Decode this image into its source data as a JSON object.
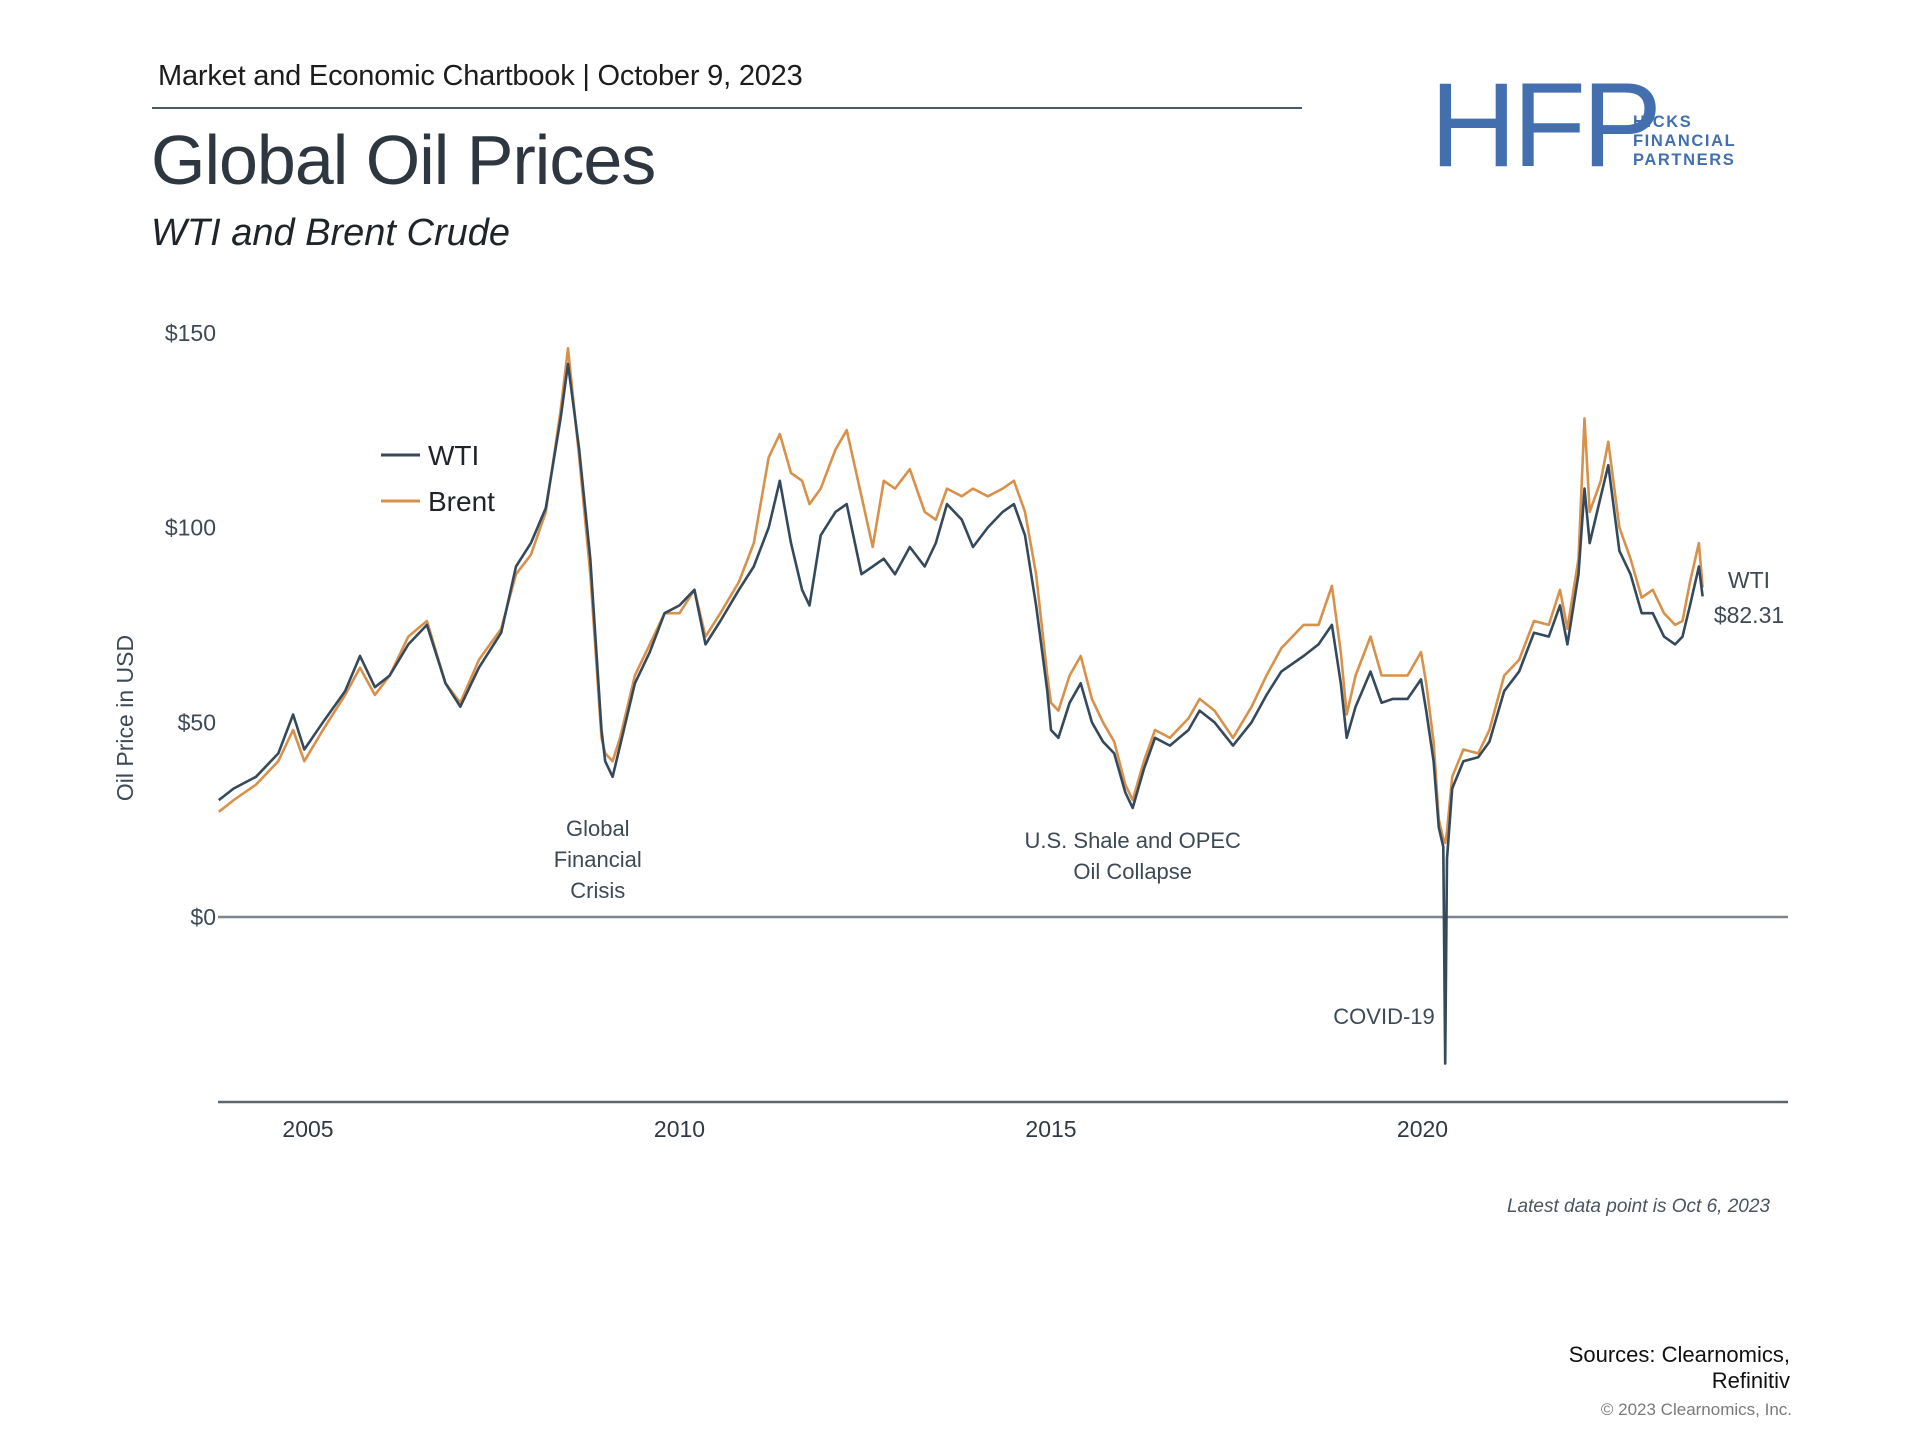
{
  "header": {
    "chartbook": "Market and Economic Chartbook | October 9, 2023",
    "title": "Global Oil Prices",
    "subtitle": "WTI and Brent Crude"
  },
  "logo": {
    "mark": "HFP",
    "line1": "HICKS",
    "line2": "FINANCIAL",
    "line3": "PARTNERS",
    "color": "#436faf"
  },
  "footer": {
    "footnote": "Latest data point is Oct 6, 2023",
    "sources_line1": "Sources: Clearnomics,",
    "sources_line2": "Refinitiv",
    "copyright": "© 2023 Clearnomics, Inc."
  },
  "chart_data": {
    "type": "line",
    "title": "Global Oil Prices",
    "subtitle": "WTI and Brent Crude",
    "xlabel": "",
    "ylabel": "Oil Price in USD",
    "xlim": [
      2003.8,
      2024.9
    ],
    "ylim": [
      -47,
      150
    ],
    "yticks": [
      0,
      50,
      100,
      150
    ],
    "ytick_labels": [
      "$0",
      "$50",
      "$100",
      "$150"
    ],
    "xticks": [
      2005,
      2010,
      2015,
      2020
    ],
    "xtick_labels": [
      "2005",
      "2010",
      "2015",
      "2020"
    ],
    "grid": false,
    "legend": {
      "placement": "top-left",
      "entries": [
        "WTI",
        "Brent"
      ]
    },
    "end_label": {
      "series": "WTI",
      "name": "WTI",
      "value_label": "$82.31",
      "value": 82.31
    },
    "annotations": [
      {
        "lines": [
          "Global",
          "Financial",
          "Crisis"
        ],
        "x": 2008.9,
        "y": 18
      },
      {
        "lines": [
          "U.S. Shale and OPEC",
          "Oil Collapse"
        ],
        "x": 2016.1,
        "y": 15
      },
      {
        "lines": [
          "COVID-19"
        ],
        "x": 2019.6,
        "y": -25
      }
    ],
    "series": [
      {
        "name": "WTI",
        "color": "#344a5c",
        "points": [
          [
            2003.8,
            30
          ],
          [
            2004.0,
            33
          ],
          [
            2004.3,
            36
          ],
          [
            2004.6,
            42
          ],
          [
            2004.8,
            52
          ],
          [
            2004.95,
            43
          ],
          [
            2005.2,
            50
          ],
          [
            2005.5,
            58
          ],
          [
            2005.7,
            67
          ],
          [
            2005.9,
            59
          ],
          [
            2006.1,
            62
          ],
          [
            2006.35,
            70
          ],
          [
            2006.6,
            75
          ],
          [
            2006.85,
            60
          ],
          [
            2007.05,
            54
          ],
          [
            2007.3,
            64
          ],
          [
            2007.6,
            73
          ],
          [
            2007.8,
            90
          ],
          [
            2008.0,
            96
          ],
          [
            2008.2,
            105
          ],
          [
            2008.4,
            128
          ],
          [
            2008.5,
            142
          ],
          [
            2008.65,
            120
          ],
          [
            2008.8,
            92
          ],
          [
            2008.95,
            48
          ],
          [
            2009.0,
            40
          ],
          [
            2009.1,
            36
          ],
          [
            2009.2,
            44
          ],
          [
            2009.4,
            60
          ],
          [
            2009.6,
            68
          ],
          [
            2009.8,
            78
          ],
          [
            2010.0,
            80
          ],
          [
            2010.2,
            84
          ],
          [
            2010.35,
            70
          ],
          [
            2010.55,
            76
          ],
          [
            2010.8,
            84
          ],
          [
            2011.0,
            90
          ],
          [
            2011.2,
            100
          ],
          [
            2011.35,
            112
          ],
          [
            2011.5,
            96
          ],
          [
            2011.65,
            84
          ],
          [
            2011.75,
            80
          ],
          [
            2011.9,
            98
          ],
          [
            2012.1,
            104
          ],
          [
            2012.25,
            106
          ],
          [
            2012.45,
            88
          ],
          [
            2012.6,
            90
          ],
          [
            2012.75,
            92
          ],
          [
            2012.9,
            88
          ],
          [
            2013.1,
            95
          ],
          [
            2013.3,
            90
          ],
          [
            2013.45,
            96
          ],
          [
            2013.6,
            106
          ],
          [
            2013.8,
            102
          ],
          [
            2013.95,
            95
          ],
          [
            2014.15,
            100
          ],
          [
            2014.35,
            104
          ],
          [
            2014.5,
            106
          ],
          [
            2014.65,
            98
          ],
          [
            2014.8,
            80
          ],
          [
            2014.95,
            58
          ],
          [
            2015.0,
            48
          ],
          [
            2015.1,
            46
          ],
          [
            2015.25,
            55
          ],
          [
            2015.4,
            60
          ],
          [
            2015.55,
            50
          ],
          [
            2015.7,
            45
          ],
          [
            2015.85,
            42
          ],
          [
            2016.0,
            32
          ],
          [
            2016.1,
            28
          ],
          [
            2016.25,
            38
          ],
          [
            2016.4,
            46
          ],
          [
            2016.6,
            44
          ],
          [
            2016.85,
            48
          ],
          [
            2017.0,
            53
          ],
          [
            2017.2,
            50
          ],
          [
            2017.45,
            44
          ],
          [
            2017.7,
            50
          ],
          [
            2017.9,
            57
          ],
          [
            2018.1,
            63
          ],
          [
            2018.4,
            67
          ],
          [
            2018.6,
            70
          ],
          [
            2018.78,
            75
          ],
          [
            2018.9,
            60
          ],
          [
            2018.98,
            46
          ],
          [
            2019.1,
            54
          ],
          [
            2019.3,
            63
          ],
          [
            2019.45,
            55
          ],
          [
            2019.6,
            56
          ],
          [
            2019.8,
            56
          ],
          [
            2019.98,
            61
          ],
          [
            2020.05,
            53
          ],
          [
            2020.15,
            40
          ],
          [
            2020.22,
            23
          ],
          [
            2020.28,
            18
          ],
          [
            2020.305,
            -37.6
          ],
          [
            2020.33,
            15
          ],
          [
            2020.4,
            33
          ],
          [
            2020.55,
            40
          ],
          [
            2020.75,
            41
          ],
          [
            2020.9,
            45
          ],
          [
            2021.1,
            58
          ],
          [
            2021.3,
            63
          ],
          [
            2021.5,
            73
          ],
          [
            2021.7,
            72
          ],
          [
            2021.85,
            80
          ],
          [
            2021.95,
            70
          ],
          [
            2022.1,
            88
          ],
          [
            2022.18,
            110
          ],
          [
            2022.25,
            96
          ],
          [
            2022.4,
            108
          ],
          [
            2022.5,
            116
          ],
          [
            2022.65,
            94
          ],
          [
            2022.8,
            88
          ],
          [
            2022.95,
            78
          ],
          [
            2023.1,
            78
          ],
          [
            2023.25,
            72
          ],
          [
            2023.4,
            70
          ],
          [
            2023.5,
            72
          ],
          [
            2023.6,
            80
          ],
          [
            2023.72,
            90
          ],
          [
            2023.77,
            82.31
          ]
        ]
      },
      {
        "name": "Brent",
        "color": "#d8914a",
        "points": [
          [
            2003.8,
            27
          ],
          [
            2004.0,
            30
          ],
          [
            2004.3,
            34
          ],
          [
            2004.6,
            40
          ],
          [
            2004.8,
            48
          ],
          [
            2004.95,
            40
          ],
          [
            2005.2,
            48
          ],
          [
            2005.5,
            57
          ],
          [
            2005.7,
            64
          ],
          [
            2005.9,
            57
          ],
          [
            2006.1,
            62
          ],
          [
            2006.35,
            72
          ],
          [
            2006.6,
            76
          ],
          [
            2006.85,
            60
          ],
          [
            2007.05,
            55
          ],
          [
            2007.3,
            66
          ],
          [
            2007.6,
            74
          ],
          [
            2007.8,
            88
          ],
          [
            2008.0,
            93
          ],
          [
            2008.2,
            104
          ],
          [
            2008.4,
            130
          ],
          [
            2008.5,
            146
          ],
          [
            2008.65,
            118
          ],
          [
            2008.8,
            88
          ],
          [
            2008.95,
            46
          ],
          [
            2009.0,
            42
          ],
          [
            2009.1,
            40
          ],
          [
            2009.2,
            46
          ],
          [
            2009.4,
            62
          ],
          [
            2009.6,
            70
          ],
          [
            2009.8,
            78
          ],
          [
            2010.0,
            78
          ],
          [
            2010.2,
            84
          ],
          [
            2010.35,
            72
          ],
          [
            2010.55,
            78
          ],
          [
            2010.8,
            86
          ],
          [
            2011.0,
            96
          ],
          [
            2011.2,
            118
          ],
          [
            2011.35,
            124
          ],
          [
            2011.5,
            114
          ],
          [
            2011.65,
            112
          ],
          [
            2011.75,
            106
          ],
          [
            2011.9,
            110
          ],
          [
            2012.1,
            120
          ],
          [
            2012.25,
            125
          ],
          [
            2012.45,
            108
          ],
          [
            2012.6,
            95
          ],
          [
            2012.75,
            112
          ],
          [
            2012.9,
            110
          ],
          [
            2013.1,
            115
          ],
          [
            2013.3,
            104
          ],
          [
            2013.45,
            102
          ],
          [
            2013.6,
            110
          ],
          [
            2013.8,
            108
          ],
          [
            2013.95,
            110
          ],
          [
            2014.15,
            108
          ],
          [
            2014.35,
            110
          ],
          [
            2014.5,
            112
          ],
          [
            2014.65,
            104
          ],
          [
            2014.8,
            88
          ],
          [
            2014.95,
            62
          ],
          [
            2015.0,
            55
          ],
          [
            2015.1,
            53
          ],
          [
            2015.25,
            62
          ],
          [
            2015.4,
            67
          ],
          [
            2015.55,
            56
          ],
          [
            2015.7,
            50
          ],
          [
            2015.85,
            45
          ],
          [
            2016.0,
            34
          ],
          [
            2016.1,
            30
          ],
          [
            2016.25,
            40
          ],
          [
            2016.4,
            48
          ],
          [
            2016.6,
            46
          ],
          [
            2016.85,
            51
          ],
          [
            2017.0,
            56
          ],
          [
            2017.2,
            53
          ],
          [
            2017.45,
            46
          ],
          [
            2017.7,
            54
          ],
          [
            2017.9,
            62
          ],
          [
            2018.1,
            69
          ],
          [
            2018.4,
            75
          ],
          [
            2018.6,
            75
          ],
          [
            2018.78,
            85
          ],
          [
            2018.9,
            68
          ],
          [
            2018.98,
            52
          ],
          [
            2019.1,
            62
          ],
          [
            2019.3,
            72
          ],
          [
            2019.45,
            62
          ],
          [
            2019.6,
            62
          ],
          [
            2019.8,
            62
          ],
          [
            2019.98,
            68
          ],
          [
            2020.05,
            60
          ],
          [
            2020.15,
            45
          ],
          [
            2020.22,
            25
          ],
          [
            2020.28,
            20
          ],
          [
            2020.305,
            19
          ],
          [
            2020.33,
            22
          ],
          [
            2020.4,
            36
          ],
          [
            2020.55,
            43
          ],
          [
            2020.75,
            42
          ],
          [
            2020.9,
            48
          ],
          [
            2021.1,
            62
          ],
          [
            2021.3,
            66
          ],
          [
            2021.5,
            76
          ],
          [
            2021.7,
            75
          ],
          [
            2021.85,
            84
          ],
          [
            2021.95,
            74
          ],
          [
            2022.1,
            92
          ],
          [
            2022.18,
            128
          ],
          [
            2022.25,
            104
          ],
          [
            2022.4,
            112
          ],
          [
            2022.5,
            122
          ],
          [
            2022.65,
            100
          ],
          [
            2022.8,
            92
          ],
          [
            2022.95,
            82
          ],
          [
            2023.1,
            84
          ],
          [
            2023.25,
            78
          ],
          [
            2023.4,
            75
          ],
          [
            2023.5,
            76
          ],
          [
            2023.6,
            86
          ],
          [
            2023.72,
            96
          ],
          [
            2023.77,
            84.6
          ]
        ]
      }
    ]
  }
}
